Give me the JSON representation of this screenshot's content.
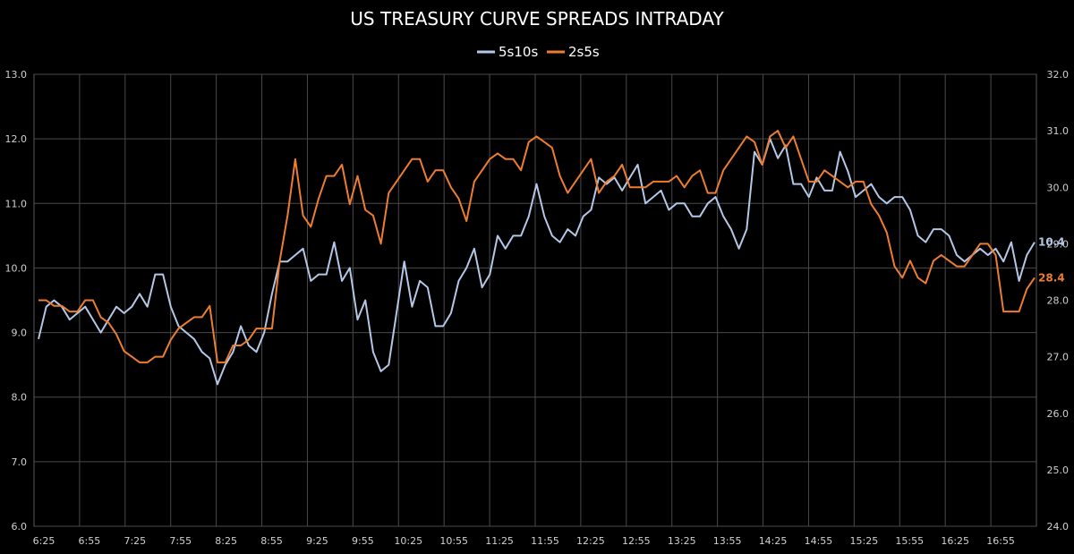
{
  "chart_data": {
    "type": "line",
    "title": "US TREASURY CURVE SPREADS INTRADAY",
    "legend_position": "top-center",
    "grid": true,
    "x_tick_labels": [
      "6:25",
      "6:55",
      "7:25",
      "7:55",
      "8:25",
      "8:55",
      "9:25",
      "9:55",
      "10:25",
      "10:55",
      "11:25",
      "11:55",
      "12:25",
      "12:55",
      "13:25",
      "13:55",
      "14:25",
      "14:55",
      "15:25",
      "15:55",
      "16:25",
      "16:55"
    ],
    "y_left": {
      "range": [
        6.0,
        13.0
      ],
      "ticks": [
        "6.0",
        "7.0",
        "8.0",
        "9.0",
        "10.0",
        "11.0",
        "12.0",
        "13.0"
      ]
    },
    "y_right": {
      "range": [
        24.0,
        32.0
      ],
      "ticks": [
        "24.0",
        "25.0",
        "26.0",
        "27.0",
        "28.0",
        "29.0",
        "30.0",
        "31.0",
        "32.0"
      ]
    },
    "series": [
      {
        "name": "5s10s",
        "axis": "left",
        "color": "#b4c7e7",
        "end_label": "10.4",
        "values": [
          8.9,
          9.4,
          9.5,
          9.4,
          9.2,
          9.3,
          9.4,
          9.2,
          9.0,
          9.2,
          9.4,
          9.3,
          9.4,
          9.6,
          9.4,
          9.9,
          9.9,
          9.4,
          9.1,
          9.0,
          8.9,
          8.7,
          8.6,
          8.2,
          8.5,
          8.7,
          9.1,
          8.8,
          8.7,
          9.0,
          9.6,
          10.1,
          10.1,
          10.2,
          10.3,
          9.8,
          9.9,
          9.9,
          10.4,
          9.8,
          10.0,
          9.2,
          9.5,
          8.7,
          8.4,
          8.5,
          9.3,
          10.1,
          9.4,
          9.8,
          9.7,
          9.1,
          9.1,
          9.3,
          9.8,
          10.0,
          10.3,
          9.7,
          9.9,
          10.5,
          10.3,
          10.5,
          10.5,
          10.8,
          11.3,
          10.8,
          10.5,
          10.4,
          10.6,
          10.5,
          10.8,
          10.9,
          11.4,
          11.3,
          11.4,
          11.2,
          11.4,
          11.6,
          11.0,
          11.1,
          11.2,
          10.9,
          11.0,
          11.0,
          10.8,
          10.8,
          11.0,
          11.1,
          10.8,
          10.6,
          10.3,
          10.6,
          11.8,
          11.6,
          12.0,
          11.7,
          11.9,
          11.3,
          11.3,
          11.1,
          11.4,
          11.2,
          11.2,
          11.8,
          11.5,
          11.1,
          11.2,
          11.3,
          11.1,
          11.0,
          11.1,
          11.1,
          10.9,
          10.5,
          10.4,
          10.6,
          10.6,
          10.5,
          10.2,
          10.1,
          10.2,
          10.3,
          10.2,
          10.3,
          10.1,
          10.4,
          9.8,
          10.2,
          10.4
        ]
      },
      {
        "name": "2s5s",
        "axis": "right",
        "color": "#ed7d31",
        "end_label": "28.4",
        "values": [
          28.0,
          28.0,
          27.9,
          27.9,
          27.8,
          27.8,
          28.0,
          28.0,
          27.7,
          27.6,
          27.4,
          27.1,
          27.0,
          26.9,
          26.9,
          27.0,
          27.0,
          27.3,
          27.5,
          27.6,
          27.7,
          27.7,
          27.9,
          26.9,
          26.9,
          27.2,
          27.2,
          27.3,
          27.5,
          27.5,
          27.5,
          28.7,
          29.5,
          30.5,
          29.5,
          29.3,
          29.8,
          30.2,
          30.2,
          30.4,
          29.7,
          30.2,
          29.6,
          29.5,
          29.0,
          29.9,
          30.1,
          30.3,
          30.5,
          30.5,
          30.1,
          30.3,
          30.3,
          30.0,
          29.8,
          29.4,
          30.1,
          30.3,
          30.5,
          30.6,
          30.5,
          30.5,
          30.3,
          30.8,
          30.9,
          30.8,
          30.7,
          30.2,
          29.9,
          30.1,
          30.3,
          30.5,
          29.9,
          30.1,
          30.2,
          30.4,
          30.0,
          30.0,
          30.0,
          30.1,
          30.1,
          30.1,
          30.2,
          30.0,
          30.2,
          30.3,
          29.9,
          29.9,
          30.3,
          30.5,
          30.7,
          30.9,
          30.8,
          30.4,
          30.9,
          31.0,
          30.7,
          30.9,
          30.5,
          30.1,
          30.1,
          30.3,
          30.2,
          30.1,
          30.0,
          30.1,
          30.1,
          29.7,
          29.5,
          29.2,
          28.6,
          28.4,
          28.7,
          28.4,
          28.3,
          28.7,
          28.8,
          28.7,
          28.6,
          28.6,
          28.8,
          29.0,
          29.0,
          28.8,
          27.8,
          27.8,
          27.8,
          28.2,
          28.4
        ]
      }
    ]
  }
}
